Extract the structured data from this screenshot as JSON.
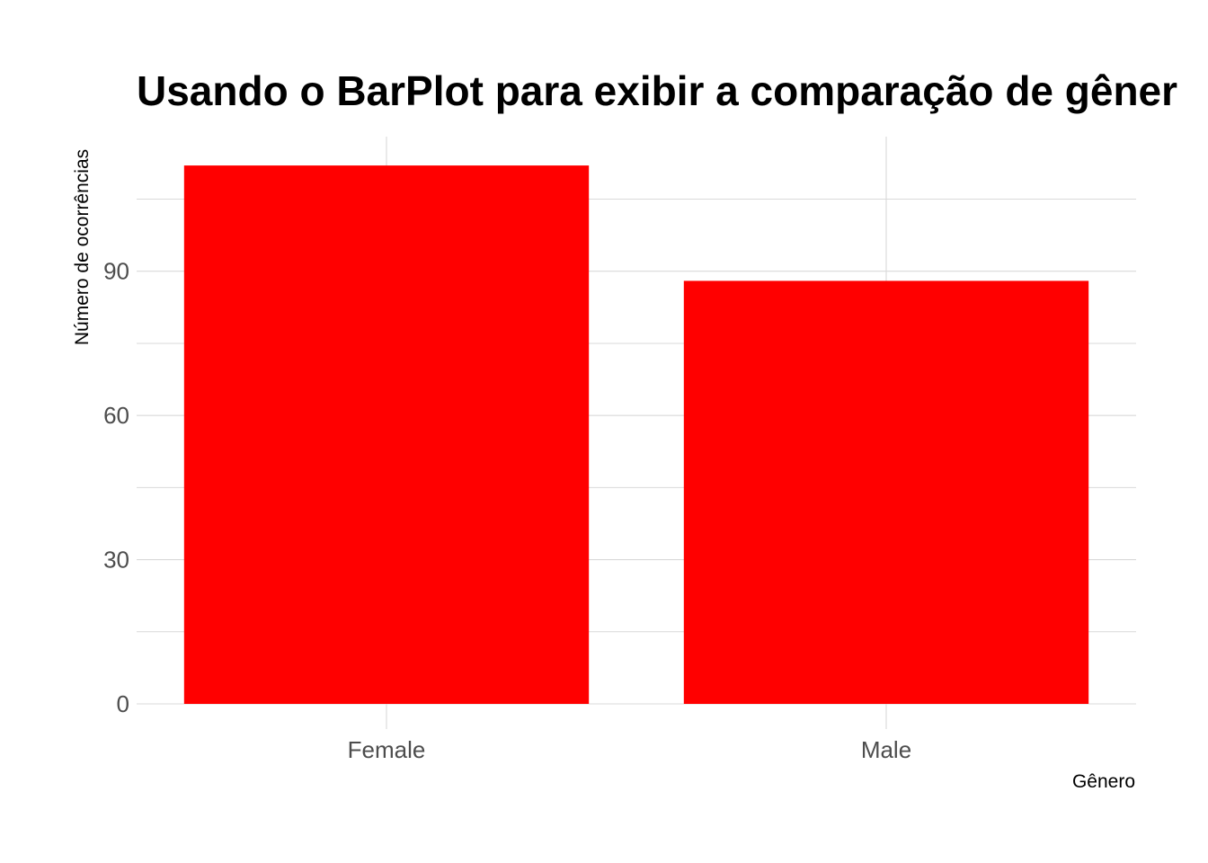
{
  "chart_data": {
    "type": "bar",
    "title": "Usando o BarPlot para exibir a comparação de gêner",
    "xlabel": "Gênero",
    "ylabel": "Número de ocorrências",
    "categories": [
      "Female",
      "Male"
    ],
    "values": [
      112,
      88
    ],
    "ylim": [
      0,
      118
    ],
    "yticks": [
      0,
      30,
      60,
      90
    ],
    "y_minor_ticks": [
      15,
      45,
      75,
      105
    ],
    "ytick_labels": [
      "0",
      "30",
      "60",
      "90"
    ],
    "grid": true,
    "legend": false,
    "bar_color": "#ff0000"
  }
}
